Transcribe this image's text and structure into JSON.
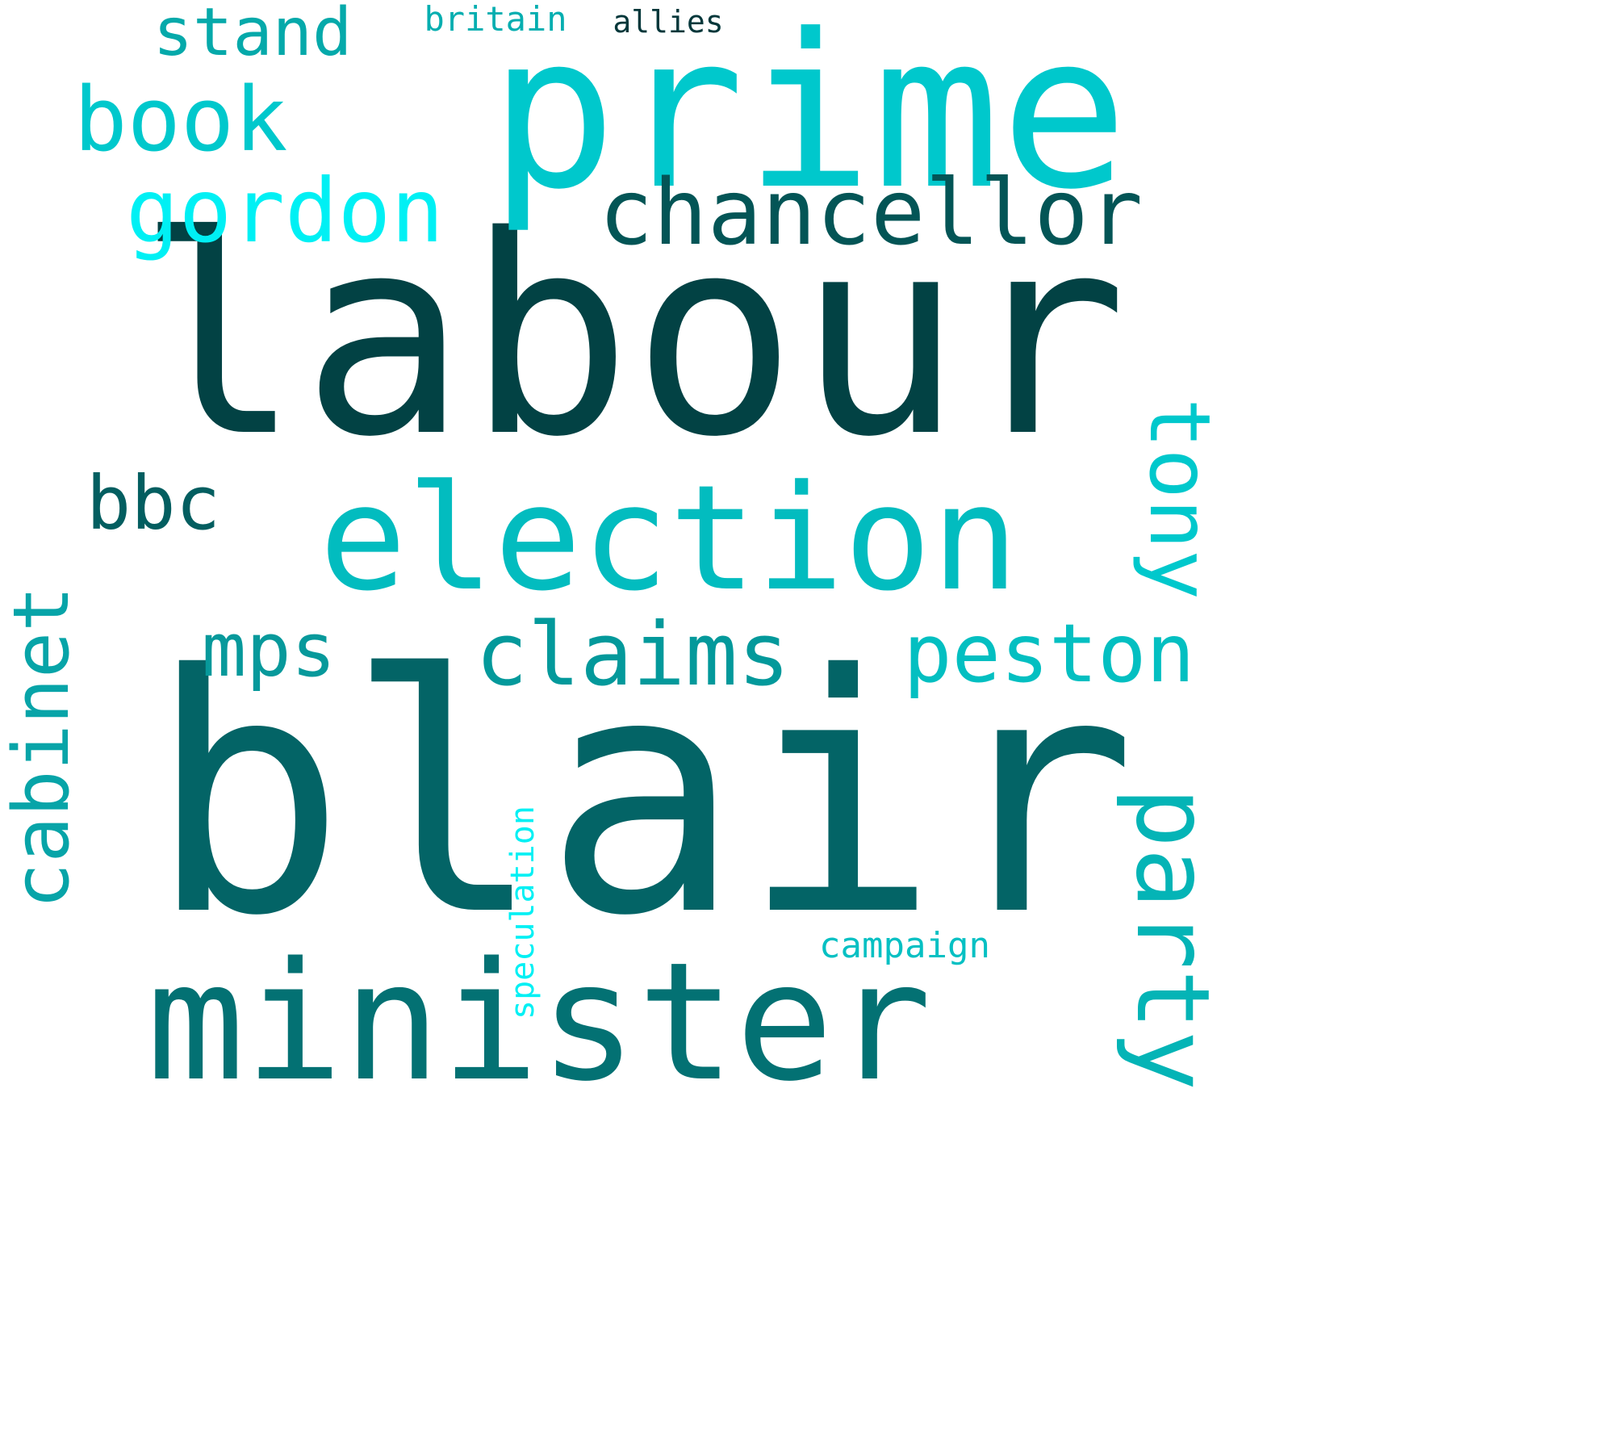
{
  "words": [
    {
      "text": "labour",
      "color": "#024244"
    },
    {
      "text": "blair",
      "color": "#036466"
    },
    {
      "text": "prime",
      "color": "#00c8cc"
    },
    {
      "text": "minister",
      "color": "#037173"
    },
    {
      "text": "election",
      "color": "#02bcbf"
    },
    {
      "text": "chancellor",
      "color": "#035556"
    },
    {
      "text": "book",
      "color": "#00c8cc"
    },
    {
      "text": "gordon",
      "color": "#00f0f4"
    },
    {
      "text": "stand",
      "color": "#05a9aa"
    },
    {
      "text": "britain",
      "color": "#05aeb0"
    },
    {
      "text": "allies",
      "color": "#03373a"
    },
    {
      "text": "bbc",
      "color": "#035e60"
    },
    {
      "text": "tony",
      "color": "#00c8cc"
    },
    {
      "text": "cabinet",
      "color": "#07a4a8"
    },
    {
      "text": "mps",
      "color": "#07999b"
    },
    {
      "text": "claims",
      "color": "#03999b"
    },
    {
      "text": "peston",
      "color": "#03bfc1"
    },
    {
      "text": "party",
      "color": "#04b4b6"
    },
    {
      "text": "speculation",
      "color": "#00f0f4"
    },
    {
      "text": "campaign",
      "color": "#06c0c3"
    }
  ]
}
